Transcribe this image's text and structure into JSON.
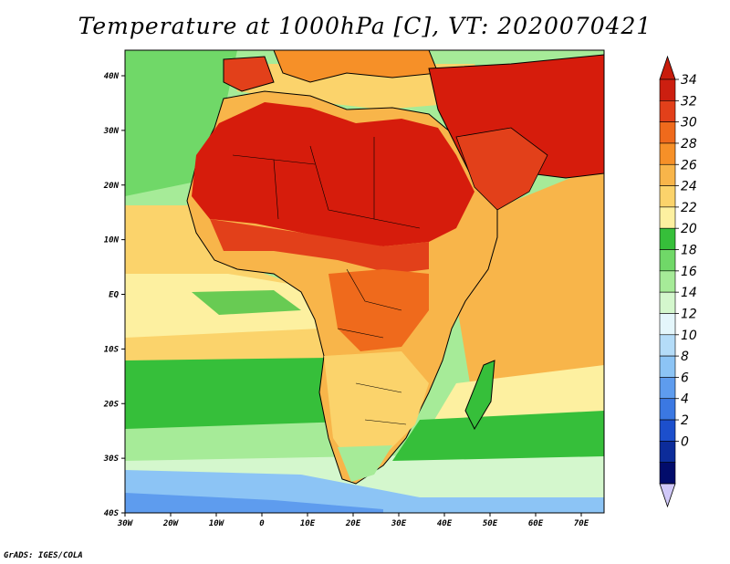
{
  "title": "Temperature at 1000hPa [C], VT: 2020070421",
  "credit": "GrADS: IGES/COLA",
  "map": {
    "lon_labels": [
      "30W",
      "20W",
      "10W",
      "0",
      "10E",
      "20E",
      "30E",
      "40E",
      "50E",
      "60E",
      "70E"
    ],
    "lat_labels": [
      "40N",
      "30N",
      "20N",
      "10N",
      "EQ",
      "10S",
      "20S",
      "30S",
      "40S"
    ]
  },
  "colorbar": {
    "labels": [
      "34",
      "32",
      "30",
      "28",
      "26",
      "24",
      "22",
      "20",
      "18",
      "16",
      "14",
      "12",
      "10",
      "8",
      "6",
      "4",
      "2",
      "0"
    ],
    "colors": [
      "#cc1f10",
      "#e2401a",
      "#ef6a1c",
      "#f69028",
      "#f8b54a",
      "#fbd36b",
      "#fdf0a0",
      "#36bf3a",
      "#70d868",
      "#a6eb98",
      "#d4f7cd",
      "#e4f6fb",
      "#b4dcf8",
      "#8cc4f5",
      "#5e9cee",
      "#3b78e2",
      "#1c4fcc",
      "#0c2c9a",
      "#020c6b"
    ],
    "over_color": "#c81c0c",
    "under_color": "#d0c8f8"
  },
  "colors": {
    "ocean_mid": "#f8c060",
    "land_hot": "#d61c0c",
    "border": "#000000"
  }
}
